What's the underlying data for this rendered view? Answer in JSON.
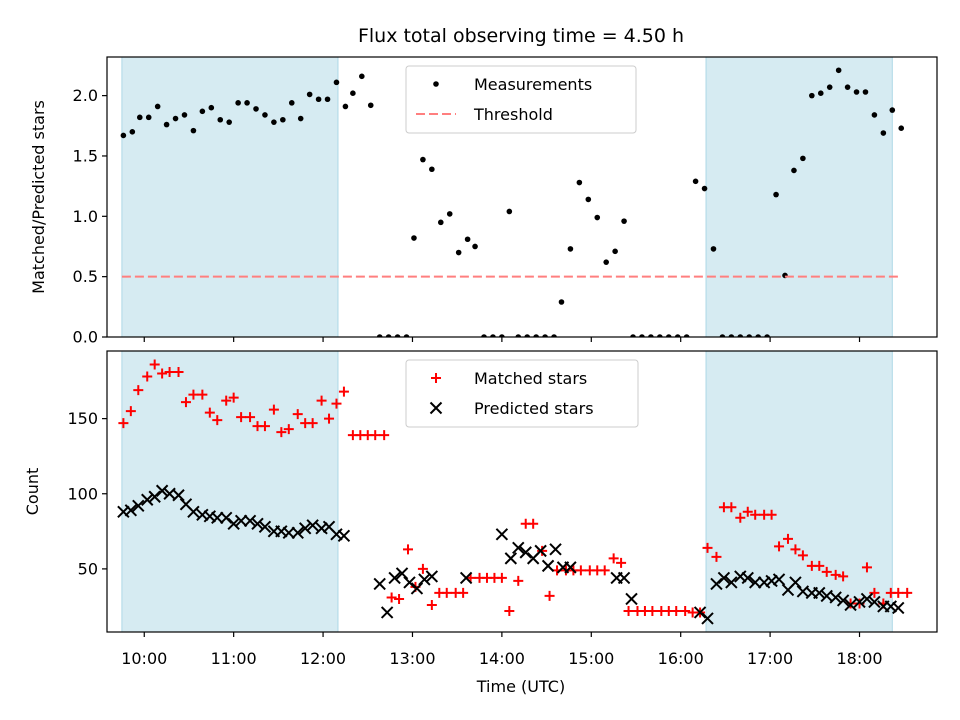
{
  "figure": {
    "title": "Flux total observing time = 4.50 h",
    "xlabel": "Time (UTC)",
    "xticks": [
      "10:00",
      "11:00",
      "12:00",
      "13:00",
      "14:00",
      "15:00",
      "16:00",
      "17:00",
      "18:00"
    ]
  },
  "chart_data": [
    {
      "type": "scatter",
      "ylabel": "Matched/Predicted stars",
      "xlim": [
        "09:35",
        "18:52"
      ],
      "ylim": [
        0,
        2.32
      ],
      "yticks": [
        "0.0",
        "0.5",
        "1.0",
        "1.5",
        "2.0"
      ],
      "shaded_intervals": [
        [
          "09:45",
          "12:10"
        ],
        [
          "16:17",
          "18:22"
        ]
      ],
      "shade_color": "#add8e6",
      "legend": {
        "position": "upper center",
        "entries": [
          "Measurements",
          "Threshold"
        ]
      },
      "series": [
        {
          "name": "Measurements",
          "marker": "dot",
          "color": "#000000",
          "x": [
            "09:46",
            "09:52",
            "09:57",
            "10:03",
            "10:09",
            "10:15",
            "10:21",
            "10:27",
            "10:33",
            "10:39",
            "10:45",
            "10:51",
            "10:57",
            "11:03",
            "11:09",
            "11:15",
            "11:21",
            "11:27",
            "11:33",
            "11:39",
            "11:45",
            "11:51",
            "11:57",
            "12:03",
            "12:09",
            "12:15",
            "12:20",
            "12:26",
            "12:32",
            "12:38",
            "12:44",
            "12:50",
            "12:56",
            "13:01",
            "13:07",
            "13:13",
            "13:19",
            "13:25",
            "13:31",
            "13:37",
            "13:42",
            "13:48",
            "13:54",
            "14:00",
            "14:05",
            "14:11",
            "14:17",
            "14:23",
            "14:29",
            "14:35",
            "14:40",
            "14:46",
            "14:52",
            "14:58",
            "15:04",
            "15:10",
            "15:16",
            "15:22",
            "15:28",
            "15:34",
            "15:40",
            "15:46",
            "15:52",
            "15:58",
            "16:04",
            "16:10",
            "16:16",
            "16:22",
            "16:28",
            "16:34",
            "16:40",
            "16:46",
            "16:52",
            "16:58",
            "17:04",
            "17:10",
            "17:16",
            "17:22",
            "17:28",
            "17:34",
            "17:40",
            "17:46",
            "17:52",
            "17:58",
            "18:04",
            "18:10",
            "18:16",
            "18:22",
            "18:28"
          ],
          "values": [
            1.67,
            1.7,
            1.82,
            1.82,
            1.91,
            1.76,
            1.81,
            1.84,
            1.71,
            1.87,
            1.9,
            1.8,
            1.78,
            1.94,
            1.94,
            1.89,
            1.84,
            1.78,
            1.8,
            1.94,
            1.81,
            2.01,
            1.97,
            1.97,
            2.11,
            1.91,
            2.02,
            2.16,
            1.92,
            0,
            0,
            0,
            0,
            0.82,
            1.47,
            1.39,
            0.95,
            1.02,
            0.7,
            0.81,
            0.75,
            0,
            0,
            0,
            1.04,
            0,
            0,
            0,
            0,
            0,
            0.29,
            0.73,
            1.28,
            1.14,
            0.99,
            0.62,
            0.71,
            0.96,
            0,
            0,
            0,
            0,
            0,
            0,
            0,
            1.29,
            1.23,
            0.73,
            0,
            0,
            0,
            0,
            0,
            0,
            1.18,
            0.51,
            1.38,
            1.48,
            2.0,
            2.02,
            2.07,
            2.21,
            2.07,
            2.03,
            2.03,
            1.84,
            1.69,
            1.88,
            1.73
          ]
        },
        {
          "name": "Threshold",
          "style": "dashed",
          "color": "#ff7f7f",
          "x": [
            "09:45",
            "18:28"
          ],
          "values": [
            0.5,
            0.5
          ]
        }
      ]
    },
    {
      "type": "scatter",
      "ylabel": "Count",
      "xlim": [
        "09:35",
        "18:52"
      ],
      "ylim": [
        8,
        195
      ],
      "yticks": [
        "50",
        "100",
        "150"
      ],
      "shaded_intervals": [
        [
          "09:45",
          "12:10"
        ],
        [
          "16:17",
          "18:22"
        ]
      ],
      "shade_color": "#add8e6",
      "legend": {
        "position": "upper center",
        "entries": [
          "Matched stars",
          "Predicted stars"
        ]
      },
      "series": [
        {
          "name": "Matched stars",
          "marker": "plus",
          "color": "#ff0000",
          "x": [
            "09:46",
            "09:51",
            "09:56",
            "10:02",
            "10:07",
            "10:12",
            "10:17",
            "10:23",
            "10:28",
            "10:33",
            "10:39",
            "10:44",
            "10:49",
            "10:55",
            "11:00",
            "11:05",
            "11:11",
            "11:16",
            "11:21",
            "11:27",
            "11:32",
            "11:37",
            "11:43",
            "11:48",
            "11:53",
            "11:59",
            "12:04",
            "12:09",
            "12:14",
            "12:20",
            "12:25",
            "12:30",
            "12:35",
            "12:41",
            "12:46",
            "12:51",
            "12:57",
            "13:02",
            "13:07",
            "13:13",
            "13:18",
            "13:23",
            "13:29",
            "13:34",
            "13:39",
            "13:45",
            "13:50",
            "13:55",
            "14:00",
            "14:05",
            "14:11",
            "14:16",
            "14:21",
            "14:27",
            "14:32",
            "14:37",
            "14:43",
            "14:48",
            "14:53",
            "14:59",
            "15:04",
            "15:09",
            "15:15",
            "15:20",
            "15:25",
            "15:31",
            "15:36",
            "15:41",
            "15:47",
            "15:52",
            "15:57",
            "16:03",
            "16:08",
            "16:13",
            "16:18",
            "16:24",
            "16:29",
            "16:34",
            "16:40",
            "16:45",
            "16:50",
            "16:56",
            "17:01",
            "17:06",
            "17:12",
            "17:17",
            "17:22",
            "17:28",
            "17:33",
            "17:38",
            "17:44",
            "17:49",
            "17:54",
            "18:00",
            "18:05",
            "18:10",
            "18:16",
            "18:21",
            "18:26",
            "18:32"
          ],
          "values": [
            147,
            155,
            169,
            178,
            186,
            180,
            181,
            181,
            161,
            166,
            166,
            154,
            149,
            162,
            164,
            151,
            151,
            145,
            145,
            156,
            141,
            143,
            153,
            147,
            147,
            162,
            150,
            160,
            168,
            139,
            139,
            139,
            139,
            139,
            31,
            30,
            63,
            38,
            50,
            26,
            34,
            34,
            34,
            34,
            44,
            44,
            44,
            44,
            44,
            22,
            42,
            80,
            80,
            62,
            32,
            49,
            49,
            49,
            49,
            49,
            49,
            49,
            57,
            54,
            22,
            22,
            22,
            22,
            22,
            22,
            22,
            22,
            21,
            21,
            64,
            58,
            91,
            91,
            84,
            88,
            86,
            86,
            86,
            65,
            70,
            63,
            59,
            52,
            52,
            48,
            46,
            45,
            27,
            27,
            51,
            34,
            27,
            34,
            34,
            34
          ]
        },
        {
          "name": "Predicted stars",
          "marker": "x",
          "color": "#000000",
          "x": [
            "09:46",
            "09:51",
            "09:56",
            "10:02",
            "10:07",
            "10:12",
            "10:17",
            "10:23",
            "10:28",
            "10:33",
            "10:39",
            "10:44",
            "10:49",
            "10:55",
            "11:00",
            "11:05",
            "11:11",
            "11:16",
            "11:21",
            "11:27",
            "11:32",
            "11:37",
            "11:43",
            "11:48",
            "11:53",
            "11:59",
            "12:04",
            "12:09",
            "12:14",
            "12:38",
            "12:43",
            "12:48",
            "12:53",
            "12:58",
            "13:03",
            "13:08",
            "13:13",
            "13:36",
            "14:00",
            "14:06",
            "14:11",
            "14:16",
            "14:21",
            "14:26",
            "14:31",
            "14:36",
            "14:41",
            "14:46",
            "15:17",
            "15:22",
            "15:27",
            "16:13",
            "16:18",
            "16:24",
            "16:29",
            "16:34",
            "16:40",
            "16:45",
            "16:50",
            "16:56",
            "17:01",
            "17:06",
            "17:12",
            "17:17",
            "17:22",
            "17:28",
            "17:33",
            "17:38",
            "17:44",
            "17:49",
            "17:54",
            "18:00",
            "18:05",
            "18:10",
            "18:16",
            "18:21",
            "18:26"
          ],
          "values": [
            88,
            89,
            92,
            96,
            98,
            102,
            100,
            99,
            93,
            88,
            86,
            85,
            84,
            84,
            80,
            82,
            82,
            80,
            78,
            75,
            75,
            74,
            74,
            77,
            79,
            77,
            78,
            73,
            72,
            40,
            21,
            44,
            47,
            41,
            37,
            43,
            45,
            44,
            73,
            57,
            64,
            61,
            57,
            62,
            52,
            63,
            51,
            51,
            44,
            44,
            30,
            21,
            17,
            40,
            44,
            41,
            45,
            44,
            41,
            41,
            42,
            43,
            36,
            41,
            35,
            34,
            34,
            32,
            31,
            29,
            26,
            28,
            30,
            28,
            25,
            25,
            24
          ]
        }
      ]
    }
  ]
}
